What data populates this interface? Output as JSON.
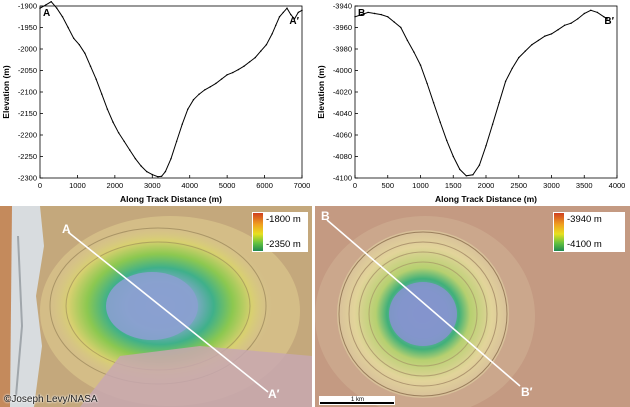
{
  "chart_data": [
    {
      "type": "line",
      "panel_label": "A",
      "end_label": "A′",
      "xlabel": "Along Track Distance (m)",
      "ylabel": "Elevation (m)",
      "xlim": [
        0,
        7000
      ],
      "ylim": [
        -2300,
        -1900
      ],
      "xticks": [
        "0",
        "1000",
        "2000",
        "3000",
        "4000",
        "5000",
        "6000",
        "7000"
      ],
      "yticks": [
        "-1900",
        "-1950",
        "-2000",
        "-2050",
        "-2100",
        "-2150",
        "-2200",
        "-2250",
        "-2300"
      ],
      "series": [
        {
          "x": [
            0,
            150,
            300,
            450,
            600,
            750,
            900,
            1050,
            1200,
            1350,
            1500,
            1650,
            1800,
            1950,
            2100,
            2250,
            2400,
            2550,
            2700,
            2850,
            3000,
            3150,
            3250,
            3350,
            3500,
            3650,
            3800,
            3950,
            4100,
            4250,
            4400,
            4550,
            4700,
            4850,
            5000,
            5150,
            5300,
            5450,
            5600,
            5750,
            5900,
            6050,
            6200,
            6300,
            6400,
            6500,
            6600,
            6700,
            6800,
            6900,
            7000
          ],
          "y": [
            -1905,
            -1898,
            -1890,
            -1905,
            -1925,
            -1950,
            -1975,
            -1990,
            -2010,
            -2040,
            -2070,
            -2105,
            -2140,
            -2170,
            -2195,
            -2215,
            -2235,
            -2255,
            -2272,
            -2285,
            -2292,
            -2297,
            -2296,
            -2285,
            -2255,
            -2215,
            -2175,
            -2140,
            -2118,
            -2105,
            -2095,
            -2088,
            -2080,
            -2070,
            -2060,
            -2055,
            -2048,
            -2040,
            -2030,
            -2020,
            -2005,
            -1990,
            -1965,
            -1945,
            -1925,
            -1915,
            -1905,
            -1920,
            -1930,
            -1915,
            -1910
          ]
        }
      ]
    },
    {
      "type": "line",
      "panel_label": "B",
      "end_label": "B′",
      "xlabel": "Along Track Distance (m)",
      "ylabel": "Elevation (m)",
      "xlim": [
        0,
        4000
      ],
      "ylim": [
        -4100,
        -3940
      ],
      "xticks": [
        "0",
        "500",
        "1000",
        "1500",
        "2000",
        "2500",
        "3000",
        "3500",
        "4000"
      ],
      "yticks": [
        "-3940",
        "-3960",
        "-3980",
        "-4000",
        "-4020",
        "-4040",
        "-4060",
        "-4080",
        "-4100"
      ],
      "series": [
        {
          "x": [
            0,
            100,
            200,
            300,
            400,
            500,
            600,
            700,
            800,
            900,
            1000,
            1100,
            1200,
            1300,
            1400,
            1500,
            1600,
            1700,
            1800,
            1900,
            2000,
            2100,
            2200,
            2300,
            2400,
            2500,
            2600,
            2700,
            2800,
            2900,
            3000,
            3100,
            3200,
            3300,
            3400,
            3500,
            3600,
            3700,
            3800,
            3850
          ],
          "y": [
            -3950,
            -3948,
            -3946,
            -3947,
            -3948,
            -3950,
            -3955,
            -3960,
            -3972,
            -3983,
            -3995,
            -4012,
            -4030,
            -4048,
            -4065,
            -4080,
            -4092,
            -4098,
            -4097,
            -4088,
            -4070,
            -4050,
            -4030,
            -4010,
            -3998,
            -3988,
            -3982,
            -3976,
            -3972,
            -3968,
            -3966,
            -3962,
            -3958,
            -3956,
            -3952,
            -3947,
            -3944,
            -3946,
            -3950,
            -3952
          ]
        }
      ]
    }
  ],
  "map_left": {
    "label_a": "A",
    "label_a_prime": "A′",
    "legend_max": "-1800 m",
    "legend_min": "-2350 m"
  },
  "map_right": {
    "label_b": "B",
    "label_b_prime": "B′",
    "legend_max": "-3940 m",
    "legend_min": "-4100 m",
    "scalebar_label": "1 km"
  },
  "credit": {
    "copyright_symbol": "©",
    "text": "Joseph Levy/NASA"
  },
  "colors": {
    "legend_top": "#d04020",
    "legend_mid_high": "#f0a020",
    "legend_mid": "#e8e020",
    "legend_mid_low": "#60c040",
    "legend_bottom": "#208850",
    "terrain_left": "#c4a87c",
    "terrain_right": "#c49a82"
  }
}
